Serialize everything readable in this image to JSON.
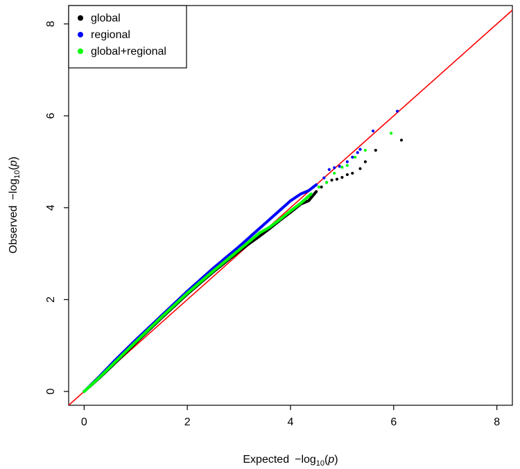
{
  "chart_data": {
    "type": "scatter",
    "xlabel": {
      "main": "Expected",
      "prefix": "−log",
      "sub": "10",
      "arg": "p"
    },
    "ylabel": {
      "main": "Observed",
      "prefix": "−log",
      "sub": "10",
      "arg": "p"
    },
    "xlim": [
      -0.3,
      8.3
    ],
    "ylim": [
      -0.3,
      8.4
    ],
    "xticks": [
      0,
      2,
      4,
      6,
      8
    ],
    "yticks": [
      0,
      2,
      4,
      6,
      8
    ],
    "xtick_labels": [
      "0",
      "2",
      "4",
      "6",
      "8"
    ],
    "ytick_labels": [
      "0",
      "2",
      "4",
      "6",
      "8"
    ],
    "legend_position": "top-left",
    "reference_line": {
      "x": [
        -0.3,
        8.3
      ],
      "y": [
        -0.3,
        8.3
      ],
      "color": "#ff0000"
    },
    "series": [
      {
        "name": "global",
        "color": "#000000",
        "points": [
          [
            0,
            0
          ],
          [
            0.3,
            0.3
          ],
          [
            0.6,
            0.62
          ],
          [
            1.0,
            1.06
          ],
          [
            1.5,
            1.6
          ],
          [
            2.0,
            2.12
          ],
          [
            2.5,
            2.6
          ],
          [
            3.0,
            3.05
          ],
          [
            3.2,
            3.22
          ],
          [
            3.4,
            3.38
          ],
          [
            3.6,
            3.55
          ],
          [
            3.8,
            3.73
          ],
          [
            4.0,
            3.9
          ],
          [
            4.2,
            4.08
          ],
          [
            4.35,
            4.15
          ],
          [
            4.5,
            4.35
          ],
          [
            4.6,
            4.45
          ],
          [
            4.7,
            4.55
          ],
          [
            4.8,
            4.6
          ],
          [
            4.9,
            4.62
          ],
          [
            5.0,
            4.66
          ],
          [
            5.1,
            4.72
          ],
          [
            5.2,
            4.75
          ],
          [
            5.35,
            4.85
          ],
          [
            5.45,
            5.0
          ],
          [
            5.65,
            5.25
          ],
          [
            6.15,
            5.47
          ]
        ]
      },
      {
        "name": "regional",
        "color": "#0000ff",
        "points": [
          [
            0,
            0
          ],
          [
            0.3,
            0.33
          ],
          [
            0.6,
            0.68
          ],
          [
            1.0,
            1.12
          ],
          [
            1.5,
            1.65
          ],
          [
            2.0,
            2.18
          ],
          [
            2.5,
            2.68
          ],
          [
            3.0,
            3.15
          ],
          [
            3.4,
            3.55
          ],
          [
            3.6,
            3.75
          ],
          [
            3.8,
            3.95
          ],
          [
            4.0,
            4.15
          ],
          [
            4.2,
            4.3
          ],
          [
            4.35,
            4.37
          ],
          [
            4.5,
            4.5
          ],
          [
            4.65,
            4.65
          ],
          [
            4.75,
            4.83
          ],
          [
            4.85,
            4.87
          ],
          [
            4.95,
            4.9
          ],
          [
            5.1,
            5.0
          ],
          [
            5.2,
            5.1
          ],
          [
            5.3,
            5.2
          ],
          [
            5.35,
            5.27
          ],
          [
            5.6,
            5.67
          ],
          [
            6.07,
            6.1
          ]
        ]
      },
      {
        "name": "global+regional",
        "color": "#00ff00",
        "points": [
          [
            0,
            0
          ],
          [
            0.3,
            0.31
          ],
          [
            0.6,
            0.64
          ],
          [
            1.0,
            1.08
          ],
          [
            1.5,
            1.62
          ],
          [
            2.0,
            2.14
          ],
          [
            2.5,
            2.62
          ],
          [
            3.0,
            3.08
          ],
          [
            3.4,
            3.45
          ],
          [
            3.6,
            3.58
          ],
          [
            3.8,
            3.75
          ],
          [
            4.0,
            3.93
          ],
          [
            4.2,
            4.1
          ],
          [
            4.4,
            4.3
          ],
          [
            4.55,
            4.45
          ],
          [
            4.7,
            4.55
          ],
          [
            4.85,
            4.75
          ],
          [
            5.0,
            4.88
          ],
          [
            5.1,
            4.92
          ],
          [
            5.25,
            5.1
          ],
          [
            5.45,
            5.25
          ],
          [
            5.95,
            5.62
          ]
        ]
      }
    ]
  }
}
